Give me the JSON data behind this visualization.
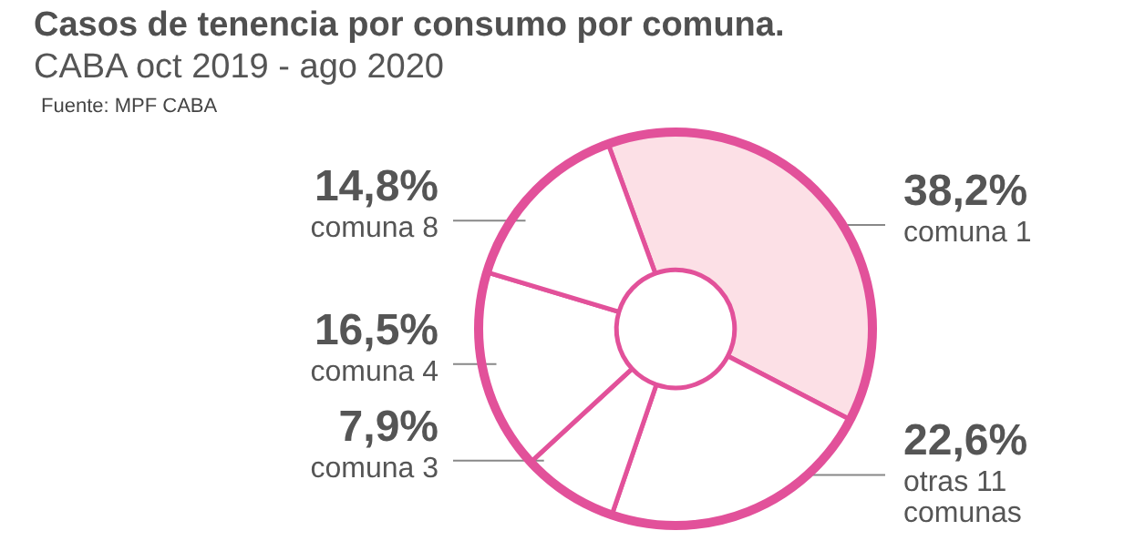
{
  "chart_data": {
    "type": "donut",
    "title": "Casos de tenencia por consumo por comuna.",
    "subtitle": "CABA oct 2019 - ago 2020",
    "annotations": [
      "Fuente: MPF CABA"
    ],
    "categories": [
      "comuna 1",
      "otras 11 comunas",
      "comuna 3",
      "comuna 4",
      "comuna 8"
    ],
    "values": [
      38.2,
      22.6,
      7.9,
      16.5,
      14.8
    ],
    "value_labels": [
      "38,2%",
      "22,6%",
      "7,9%",
      "16,5%",
      "14,8%"
    ],
    "colors": [
      "#fce0e6",
      "#ffffff",
      "#ffffff",
      "#ffffff",
      "#ffffff"
    ]
  }
}
